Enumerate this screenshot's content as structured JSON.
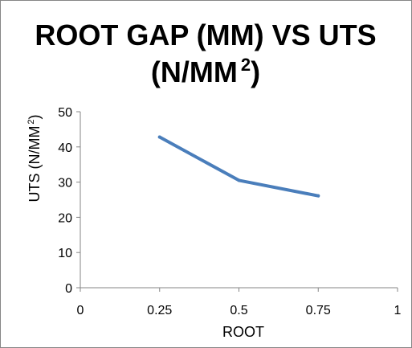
{
  "chart_data": {
    "type": "line",
    "title": "ROOT GAP (MM) VS UTS",
    "title_line2": "(N/MM",
    "title_line2_sup": "2",
    "title_line2_end": ")",
    "xlabel": "ROOT",
    "ylabel": "UTS (N/MM",
    "ylabel_sup": "2",
    "ylabel_end": ")",
    "xlim": [
      0,
      1
    ],
    "ylim": [
      0,
      50
    ],
    "x_ticks": [
      0,
      0.25,
      0.5,
      0.75,
      1
    ],
    "x_tick_labels": [
      "0",
      "0.25",
      "0.5",
      "0.75",
      "1"
    ],
    "y_ticks": [
      0,
      10,
      20,
      30,
      40,
      50
    ],
    "y_tick_labels": [
      "0",
      "10",
      "20",
      "30",
      "40",
      "50"
    ],
    "grid": false,
    "legend": "none",
    "series": [
      {
        "color": "#4a7ebb",
        "x": [
          0.25,
          0.5,
          0.75
        ],
        "y": [
          42.8,
          30.5,
          26.1
        ]
      }
    ]
  }
}
